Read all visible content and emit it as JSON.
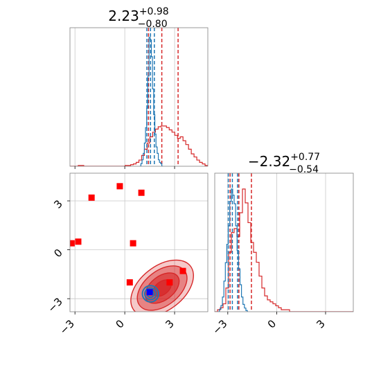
{
  "colors": {
    "red": "#d62728",
    "blue": "#1f77b4",
    "truth_blue": "#0000ff",
    "truth_red": "#ff0000"
  },
  "chart_data": {
    "type": "corner",
    "grid": true,
    "parameters": [
      {
        "range": [
          -3.3,
          5.0
        ],
        "ticks": [
          -3,
          0,
          3
        ],
        "tick_labels": [
          "−3",
          "0",
          "3"
        ]
      },
      {
        "range": [
          -3.8,
          4.7
        ],
        "ticks": [
          -3,
          0,
          3
        ],
        "tick_labels": [
          "−3",
          "0",
          "3"
        ]
      }
    ],
    "titles": [
      {
        "value": "2.23",
        "sup": "+0.98",
        "sub": "−0.80"
      },
      {
        "value": "−2.32",
        "sup": "+0.77",
        "sub": "−0.54"
      }
    ],
    "series": [
      {
        "color": "#d62728",
        "hist1": {
          "x0": -3.3,
          "x1": 5.0,
          "counts": [
            0,
            0,
            0,
            1,
            1,
            0,
            0,
            0,
            0,
            0,
            0,
            0,
            0,
            0,
            0,
            0,
            0,
            0,
            0,
            0,
            1,
            1,
            2,
            3,
            5,
            8,
            14,
            22,
            30,
            38,
            44,
            48,
            51,
            52,
            52,
            50,
            47,
            44,
            40,
            36,
            38,
            33,
            28,
            22,
            16,
            12,
            8,
            5,
            3,
            1
          ]
        },
        "hist2": {
          "x0": -3.8,
          "x1": 4.7,
          "counts": [
            0,
            1,
            2,
            4,
            12,
            30,
            40,
            42,
            38,
            50,
            62,
            55,
            45,
            35,
            30,
            25,
            18,
            12,
            8,
            6,
            5,
            4,
            3,
            2,
            1,
            1,
            1,
            0,
            0,
            0,
            0,
            0,
            0,
            0,
            0,
            0,
            0,
            0,
            0,
            0,
            0,
            0,
            0,
            0,
            0,
            0,
            0,
            0,
            0,
            0
          ]
        },
        "quantiles1": [
          1.43,
          2.23,
          3.21
        ],
        "quantiles2": [
          -2.86,
          -2.32,
          -1.55
        ],
        "contour": {
          "center": [
            2.25,
            -2.35
          ],
          "sigmas": [
            0.9,
            0.55
          ],
          "angle": 38,
          "levels": [
            0.7,
            1.3,
            1.9,
            2.4
          ]
        }
      },
      {
        "color": "#1f77b4",
        "hist1": {
          "x0": 0.9,
          "x1": 2.3,
          "counts": [
            0,
            2,
            5,
            10,
            18,
            30,
            45,
            70,
            100,
            98,
            85,
            60,
            40,
            25,
            15,
            10,
            5,
            3,
            2,
            0
          ]
        },
        "hist2": {
          "x0": -3.6,
          "x1": -1.8,
          "counts": [
            0,
            2,
            5,
            12,
            25,
            40,
            55,
            70,
            90,
            100,
            95,
            88,
            70,
            50,
            35,
            22,
            12,
            6,
            3,
            1
          ]
        },
        "quantiles1": [
          1.33,
          1.55,
          1.78
        ],
        "quantiles2": [
          -2.97,
          -2.72,
          -2.4
        ],
        "contour": {
          "center": [
            1.55,
            -2.7
          ],
          "sigmas": [
            0.35,
            0.35
          ],
          "angle": 0,
          "levels": [
            0.6,
            1.0,
            1.4
          ]
        }
      }
    ],
    "markers": {
      "red_squares": [
        [
          -3.2,
          0.4
        ],
        [
          -2.8,
          0.5
        ],
        [
          -2.0,
          3.2
        ],
        [
          -0.3,
          3.9
        ],
        [
          0.3,
          -2.0
        ],
        [
          0.5,
          0.4
        ],
        [
          1.0,
          3.5
        ],
        [
          2.7,
          -2.0
        ],
        [
          3.5,
          -1.3
        ]
      ],
      "blue_square": [
        1.5,
        -2.6
      ]
    }
  }
}
